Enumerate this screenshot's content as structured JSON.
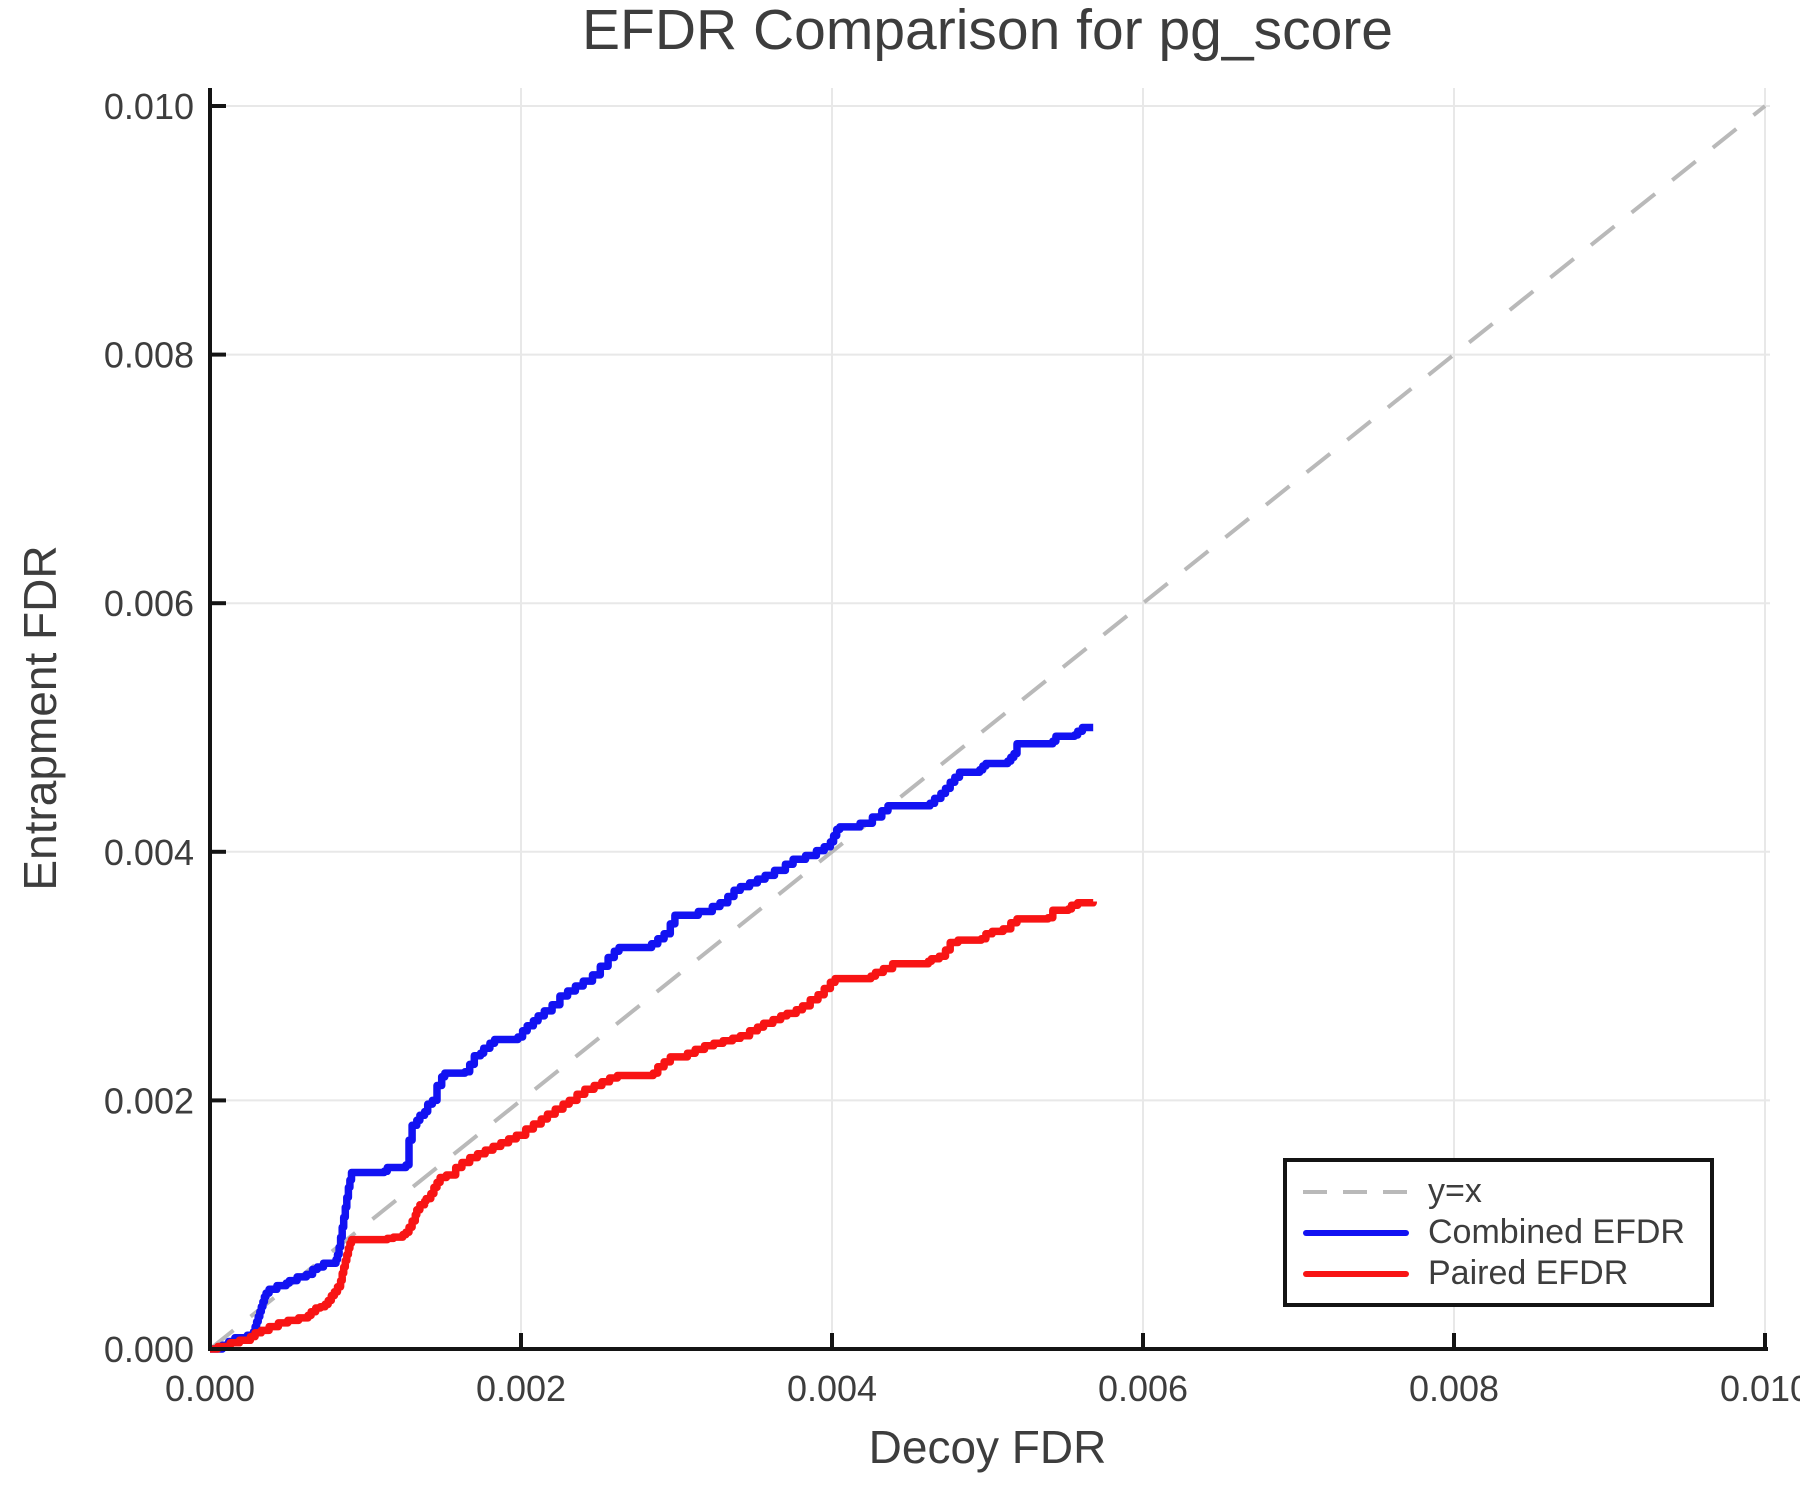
{
  "title": "EFDR Comparison for pg_score",
  "colors": {
    "background": "#ffffff",
    "text": "#3d3d3d",
    "spine": "#141414",
    "grid": "#e8e8e8",
    "identity_line": "#b9b9b9",
    "combined": "#1212f2",
    "paired": "#f81414"
  },
  "chart_data": {
    "type": "line",
    "title": "EFDR Comparison for pg_score",
    "xlabel": "Decoy FDR",
    "ylabel": "Entrapment FDR",
    "xlim": [
      0.0,
      0.01
    ],
    "ylim": [
      0.0,
      0.01
    ],
    "xtick_values": [
      0.0,
      0.002,
      0.004,
      0.006,
      0.008,
      0.01
    ],
    "ytick_values": [
      0.0,
      0.002,
      0.004,
      0.006,
      0.008,
      0.01
    ],
    "xtick_labels": [
      "0.000",
      "0.002",
      "0.004",
      "0.006",
      "0.008",
      "0.010"
    ],
    "ytick_labels": [
      "0.000",
      "0.002",
      "0.004",
      "0.006",
      "0.008",
      "0.010"
    ],
    "grid": true,
    "legend_position": "lower right",
    "series": [
      {
        "name": "y=x",
        "style": "dashed",
        "step": false,
        "color": "#b9b9b9",
        "points": [
          [
            0.0,
            0.0
          ],
          [
            0.01,
            0.01
          ]
        ]
      },
      {
        "name": "Combined EFDR",
        "style": "solid",
        "step": true,
        "color": "#1212f2",
        "points": [
          [
            0.0,
            0.0
          ],
          [
            8e-05,
            3e-05
          ],
          [
            0.00012,
            6e-05
          ],
          [
            0.00016,
            9e-05
          ],
          [
            0.00024,
            0.00011
          ],
          [
            0.00028,
            0.00014
          ],
          [
            0.00029,
            0.00018
          ],
          [
            0.0003,
            0.00022
          ],
          [
            0.00031,
            0.00026
          ],
          [
            0.00032,
            0.0003
          ],
          [
            0.00033,
            0.00034
          ],
          [
            0.00034,
            0.00038
          ],
          [
            0.00035,
            0.00042
          ],
          [
            0.00036,
            0.00045
          ],
          [
            0.00038,
            0.00048
          ],
          [
            0.00043,
            0.00051
          ],
          [
            0.00049,
            0.00053
          ],
          [
            0.00051,
            0.00055
          ],
          [
            0.00056,
            0.00058
          ],
          [
            0.00062,
            0.0006
          ],
          [
            0.00066,
            0.00064
          ],
          [
            0.00069,
            0.00066
          ],
          [
            0.00073,
            0.00069
          ],
          [
            0.00081,
            0.00072
          ],
          [
            0.00082,
            0.00076
          ],
          [
            0.00083,
            0.00082
          ],
          [
            0.00084,
            0.0009
          ],
          [
            0.00085,
            0.00098
          ],
          [
            0.00086,
            0.00106
          ],
          [
            0.00087,
            0.00114
          ],
          [
            0.00088,
            0.00122
          ],
          [
            0.00089,
            0.0013
          ],
          [
            0.0009,
            0.00136
          ],
          [
            0.00091,
            0.00142
          ],
          [
            0.00112,
            0.00143
          ],
          [
            0.00114,
            0.00146
          ],
          [
            0.00126,
            0.00148
          ],
          [
            0.00128,
            0.00168
          ],
          [
            0.0013,
            0.0018
          ],
          [
            0.00133,
            0.00184
          ],
          [
            0.00135,
            0.00188
          ],
          [
            0.00138,
            0.00191
          ],
          [
            0.0014,
            0.00197
          ],
          [
            0.00143,
            0.002
          ],
          [
            0.00146,
            0.00212
          ],
          [
            0.00149,
            0.00219
          ],
          [
            0.00151,
            0.00222
          ],
          [
            0.00164,
            0.00223
          ],
          [
            0.00167,
            0.00229
          ],
          [
            0.0017,
            0.00236
          ],
          [
            0.00174,
            0.00238
          ],
          [
            0.00176,
            0.00242
          ],
          [
            0.0018,
            0.00246
          ],
          [
            0.00183,
            0.00249
          ],
          [
            0.00198,
            0.00251
          ],
          [
            0.00201,
            0.00256
          ],
          [
            0.00204,
            0.0026
          ],
          [
            0.00208,
            0.00264
          ],
          [
            0.00211,
            0.00268
          ],
          [
            0.00215,
            0.00272
          ],
          [
            0.0022,
            0.00277
          ],
          [
            0.00225,
            0.00284
          ],
          [
            0.0023,
            0.00288
          ],
          [
            0.00235,
            0.00292
          ],
          [
            0.0024,
            0.00296
          ],
          [
            0.00246,
            0.00301
          ],
          [
            0.00251,
            0.00308
          ],
          [
            0.00256,
            0.00315
          ],
          [
            0.0026,
            0.0032
          ],
          [
            0.00263,
            0.00323
          ],
          [
            0.00284,
            0.00326
          ],
          [
            0.00288,
            0.0033
          ],
          [
            0.00292,
            0.00334
          ],
          [
            0.00296,
            0.00342
          ],
          [
            0.00299,
            0.00349
          ],
          [
            0.00314,
            0.00352
          ],
          [
            0.00323,
            0.00356
          ],
          [
            0.00328,
            0.00359
          ],
          [
            0.00333,
            0.00364
          ],
          [
            0.00337,
            0.00369
          ],
          [
            0.00341,
            0.00372
          ],
          [
            0.00347,
            0.00375
          ],
          [
            0.00352,
            0.00378
          ],
          [
            0.00357,
            0.00381
          ],
          [
            0.00363,
            0.00385
          ],
          [
            0.0037,
            0.0039
          ],
          [
            0.00375,
            0.00394
          ],
          [
            0.00383,
            0.00397
          ],
          [
            0.0039,
            0.00401
          ],
          [
            0.00395,
            0.00404
          ],
          [
            0.00399,
            0.00408
          ],
          [
            0.00401,
            0.00413
          ],
          [
            0.00403,
            0.00418
          ],
          [
            0.00405,
            0.0042
          ],
          [
            0.00418,
            0.00423
          ],
          [
            0.00426,
            0.00428
          ],
          [
            0.00432,
            0.00433
          ],
          [
            0.00436,
            0.00437
          ],
          [
            0.00463,
            0.00439
          ],
          [
            0.00466,
            0.00443
          ],
          [
            0.0047,
            0.00447
          ],
          [
            0.00473,
            0.00451
          ],
          [
            0.00476,
            0.00456
          ],
          [
            0.00479,
            0.0046
          ],
          [
            0.00482,
            0.00464
          ],
          [
            0.00495,
            0.00466
          ],
          [
            0.00497,
            0.00469
          ],
          [
            0.00499,
            0.00471
          ],
          [
            0.00513,
            0.00473
          ],
          [
            0.00515,
            0.00476
          ],
          [
            0.00517,
            0.00479
          ],
          [
            0.00519,
            0.00487
          ],
          [
            0.00542,
            0.00489
          ],
          [
            0.00544,
            0.00493
          ],
          [
            0.00556,
            0.00494
          ],
          [
            0.00558,
            0.00497
          ],
          [
            0.00561,
            0.005
          ],
          [
            0.00568,
            0.005
          ]
        ]
      },
      {
        "name": "Paired EFDR",
        "style": "solid",
        "step": true,
        "color": "#f81414",
        "points": [
          [
            0.0,
            0.0
          ],
          [
            5e-05,
            2e-05
          ],
          [
            0.00013,
            5e-05
          ],
          [
            0.00019,
            7e-05
          ],
          [
            0.00026,
            0.0001
          ],
          [
            0.00029,
            0.00013
          ],
          [
            0.00033,
            0.00015
          ],
          [
            0.00038,
            0.00018
          ],
          [
            0.00044,
            0.00021
          ],
          [
            0.0005,
            0.00023
          ],
          [
            0.00057,
            0.00025
          ],
          [
            0.00063,
            0.00027
          ],
          [
            0.00065,
            0.0003
          ],
          [
            0.00068,
            0.00033
          ],
          [
            0.00071,
            0.00034
          ],
          [
            0.00074,
            0.00036
          ],
          [
            0.00076,
            0.00039
          ],
          [
            0.00078,
            0.00043
          ],
          [
            0.0008,
            0.00046
          ],
          [
            0.00082,
            0.0005
          ],
          [
            0.00084,
            0.00055
          ],
          [
            0.00085,
            0.00061
          ],
          [
            0.00086,
            0.00066
          ],
          [
            0.00087,
            0.00071
          ],
          [
            0.00088,
            0.00076
          ],
          [
            0.00089,
            0.00081
          ],
          [
            0.0009,
            0.00085
          ],
          [
            0.00091,
            0.00088
          ],
          [
            0.00114,
            0.00089
          ],
          [
            0.00118,
            0.0009
          ],
          [
            0.00124,
            0.00092
          ],
          [
            0.00126,
            0.00094
          ],
          [
            0.00128,
            0.00098
          ],
          [
            0.0013,
            0.00103
          ],
          [
            0.00132,
            0.00108
          ],
          [
            0.00133,
            0.00112
          ],
          [
            0.00135,
            0.00116
          ],
          [
            0.00138,
            0.00119
          ],
          [
            0.00139,
            0.00121
          ],
          [
            0.00142,
            0.00125
          ],
          [
            0.00144,
            0.0013
          ],
          [
            0.00146,
            0.00134
          ],
          [
            0.00148,
            0.00138
          ],
          [
            0.00152,
            0.0014
          ],
          [
            0.00158,
            0.00146
          ],
          [
            0.00162,
            0.0015
          ],
          [
            0.00167,
            0.00154
          ],
          [
            0.00172,
            0.00157
          ],
          [
            0.00177,
            0.0016
          ],
          [
            0.00182,
            0.00163
          ],
          [
            0.00187,
            0.00166
          ],
          [
            0.00192,
            0.00169
          ],
          [
            0.00197,
            0.00172
          ],
          [
            0.00203,
            0.00177
          ],
          [
            0.00208,
            0.00181
          ],
          [
            0.00213,
            0.00185
          ],
          [
            0.00217,
            0.00189
          ],
          [
            0.00222,
            0.00193
          ],
          [
            0.00227,
            0.00197
          ],
          [
            0.00231,
            0.002
          ],
          [
            0.00236,
            0.00205
          ],
          [
            0.00241,
            0.00209
          ],
          [
            0.00247,
            0.00212
          ],
          [
            0.00252,
            0.00215
          ],
          [
            0.00257,
            0.00218
          ],
          [
            0.00262,
            0.0022
          ],
          [
            0.00285,
            0.00222
          ],
          [
            0.00288,
            0.00227
          ],
          [
            0.00292,
            0.00231
          ],
          [
            0.00296,
            0.00235
          ],
          [
            0.00307,
            0.00238
          ],
          [
            0.00312,
            0.00241
          ],
          [
            0.00318,
            0.00244
          ],
          [
            0.00324,
            0.00246
          ],
          [
            0.0033,
            0.00248
          ],
          [
            0.00336,
            0.0025
          ],
          [
            0.00341,
            0.00252
          ],
          [
            0.00347,
            0.00256
          ],
          [
            0.00352,
            0.00259
          ],
          [
            0.00356,
            0.00262
          ],
          [
            0.00362,
            0.00265
          ],
          [
            0.00367,
            0.00268
          ],
          [
            0.00371,
            0.0027
          ],
          [
            0.00377,
            0.00273
          ],
          [
            0.00381,
            0.00276
          ],
          [
            0.00386,
            0.00281
          ],
          [
            0.00391,
            0.00285
          ],
          [
            0.00395,
            0.0029
          ],
          [
            0.00399,
            0.00295
          ],
          [
            0.00402,
            0.00298
          ],
          [
            0.00425,
            0.003
          ],
          [
            0.00428,
            0.00303
          ],
          [
            0.00433,
            0.00306
          ],
          [
            0.00439,
            0.0031
          ],
          [
            0.00462,
            0.00312
          ],
          [
            0.00464,
            0.00314
          ],
          [
            0.00469,
            0.00316
          ],
          [
            0.00473,
            0.00321
          ],
          [
            0.00476,
            0.00327
          ],
          [
            0.00481,
            0.00329
          ],
          [
            0.00496,
            0.0033
          ],
          [
            0.00499,
            0.00334
          ],
          [
            0.00503,
            0.00336
          ],
          [
            0.0051,
            0.00338
          ],
          [
            0.00515,
            0.00343
          ],
          [
            0.00519,
            0.00346
          ],
          [
            0.00539,
            0.00347
          ],
          [
            0.00542,
            0.00353
          ],
          [
            0.00552,
            0.00354
          ],
          [
            0.00554,
            0.00357
          ],
          [
            0.00558,
            0.00359
          ],
          [
            0.00568,
            0.0036
          ]
        ]
      }
    ]
  },
  "legend": {
    "entries": [
      {
        "label": "y=x"
      },
      {
        "label": "Combined EFDR"
      },
      {
        "label": "Paired EFDR"
      }
    ]
  }
}
